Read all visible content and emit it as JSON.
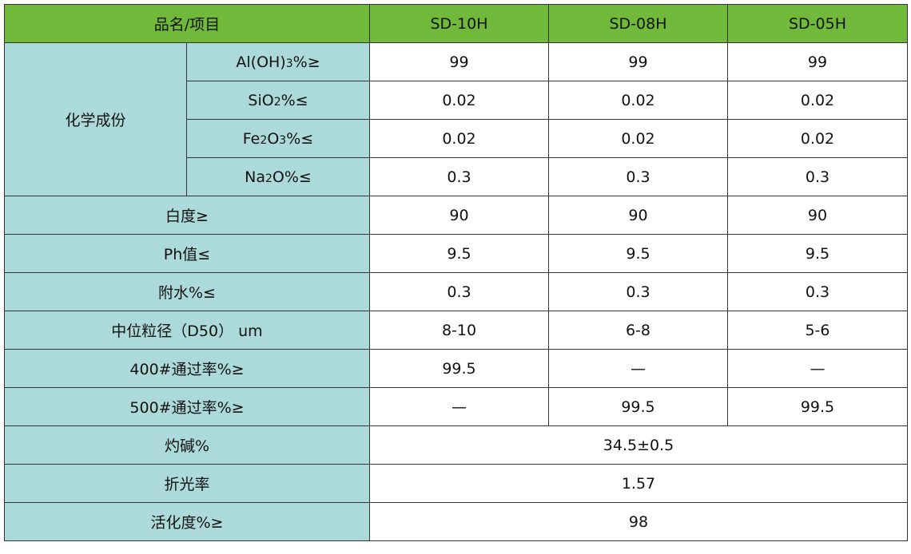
{
  "header": {
    "item": "品名/项目",
    "products": [
      "SD-10H",
      "SD-08H",
      "SD-05H"
    ]
  },
  "chem": {
    "group": "化学成份",
    "rows": [
      {
        "pre": "Al(OH)",
        "sub": "3",
        "post": "%≥",
        "values": [
          "99",
          "99",
          "99"
        ]
      },
      {
        "pre": "SiO",
        "sub": "2",
        "post": "%≤",
        "values": [
          "0.02",
          "0.02",
          "0.02"
        ]
      },
      {
        "pre": "Fe",
        "sub": "2",
        "mid": "O",
        "sub2": "3",
        "post": "%≤",
        "values": [
          "0.02",
          "0.02",
          "0.02"
        ]
      },
      {
        "pre": "Na",
        "sub": "2",
        "post": "O%≤",
        "values": [
          "0.3",
          "0.3",
          "0.3"
        ]
      }
    ]
  },
  "rows": [
    {
      "label": "白度≥",
      "values": [
        "90",
        "90",
        "90"
      ]
    },
    {
      "label": "Ph值≤",
      "values": [
        "9.5",
        "9.5",
        "9.5"
      ]
    },
    {
      "label": "附水%≤",
      "values": [
        "0.3",
        "0.3",
        "0.3"
      ]
    },
    {
      "label": "中位粒径（D50） um",
      "values": [
        "8-10",
        "6-8",
        "5-6"
      ]
    },
    {
      "label": "400#通过率%≥",
      "values": [
        "99.5",
        "—",
        "—"
      ]
    },
    {
      "label": "500#通过率%≥",
      "values": [
        "—",
        "99.5",
        "99.5"
      ]
    }
  ],
  "merged": [
    {
      "label": "灼碱%",
      "value": "34.5±0.5"
    },
    {
      "label": "折光率",
      "value": "1.57"
    },
    {
      "label": "活化度%≥",
      "value": "98"
    }
  ]
}
